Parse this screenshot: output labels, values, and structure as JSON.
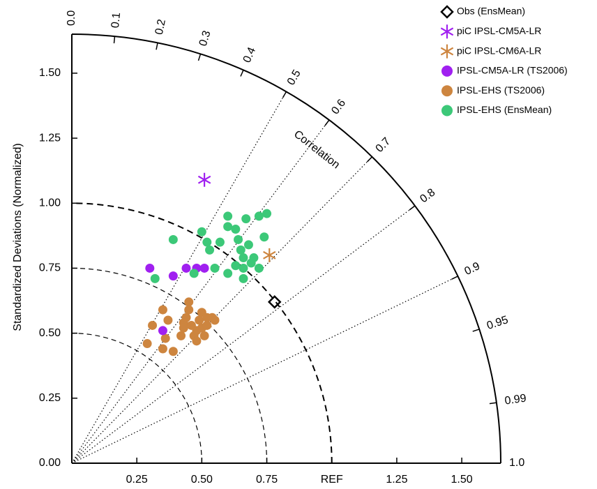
{
  "chart_data": {
    "type": "taylor",
    "y_label": "Standardized Deviations (Normalized)",
    "correlation_label": "Correlation",
    "xlim": [
      0,
      1.65
    ],
    "ylim": [
      0,
      1.65
    ],
    "xticks": [
      0.25,
      {
        "value": 0.5,
        "label": "0.50"
      },
      0.75,
      {
        "value": 1.0,
        "label": "REF"
      },
      1.25,
      {
        "value": 1.5,
        "label": "1.50"
      }
    ],
    "yticks": [
      {
        "value": 0,
        "label": "0.00"
      },
      0.25,
      {
        "value": 0.5,
        "label": "0.50"
      },
      0.75,
      {
        "value": 1.0,
        "label": "1.00"
      },
      1.25,
      {
        "value": 1.5,
        "label": "1.50"
      }
    ],
    "correlation_ticks": [
      {
        "value": 0,
        "label": "0.0"
      },
      0.1,
      0.2,
      0.3,
      0.4,
      0.5,
      0.6,
      0.7,
      0.8,
      0.9,
      0.95,
      0.99,
      {
        "value": 1,
        "label": "1.0"
      }
    ],
    "series": [
      {
        "name": "Obs (EnsMean)",
        "color": "#000000",
        "marker": "diamond",
        "x": [
          0.78
        ],
        "values": [
          0.62
        ]
      },
      {
        "name": "piC IPSL-CM5A-LR",
        "color": "#a020f0",
        "marker": "star",
        "x": [
          0.51
        ],
        "values": [
          1.09
        ]
      },
      {
        "name": "piC IPSL-CM6A-LR",
        "color": "#cd853f",
        "marker": "star",
        "x": [
          0.76
        ],
        "values": [
          0.8
        ]
      },
      {
        "name": "IPSL-CM5A-LR (TS2006)",
        "color": "#a020f0",
        "marker": "circle",
        "x": [
          0.3,
          0.39,
          0.44,
          0.48,
          0.51,
          0.35
        ],
        "values": [
          0.75,
          0.72,
          0.75,
          0.75,
          0.75,
          0.51
        ]
      },
      {
        "name": "IPSL-EHS (TS2006)",
        "color": "#cd853f",
        "marker": "circle",
        "x": [
          0.29,
          0.31,
          0.35,
          0.36,
          0.35,
          0.37,
          0.39,
          0.42,
          0.43,
          0.45,
          0.45,
          0.46,
          0.47,
          0.48,
          0.48,
          0.49,
          0.5,
          0.5,
          0.51,
          0.52,
          0.52,
          0.54,
          0.55,
          0.43,
          0.44
        ],
        "values": [
          0.46,
          0.53,
          0.59,
          0.48,
          0.44,
          0.55,
          0.43,
          0.49,
          0.54,
          0.62,
          0.59,
          0.53,
          0.49,
          0.51,
          0.47,
          0.55,
          0.58,
          0.52,
          0.49,
          0.56,
          0.53,
          0.56,
          0.55,
          0.52,
          0.56
        ]
      },
      {
        "name": "IPSL-EHS (EnsMean)",
        "color": "#3cc878",
        "marker": "circle",
        "x": [
          0.32,
          0.39,
          0.47,
          0.5,
          0.52,
          0.53,
          0.55,
          0.57,
          0.6,
          0.6,
          0.6,
          0.63,
          0.63,
          0.64,
          0.65,
          0.66,
          0.66,
          0.66,
          0.67,
          0.68,
          0.69,
          0.72,
          0.72,
          0.74,
          0.75,
          0.7
        ],
        "values": [
          0.71,
          0.86,
          0.73,
          0.89,
          0.85,
          0.82,
          0.75,
          0.85,
          0.91,
          0.95,
          0.73,
          0.76,
          0.9,
          0.86,
          0.82,
          0.75,
          0.71,
          0.79,
          0.94,
          0.84,
          0.77,
          0.95,
          0.75,
          0.87,
          0.96,
          0.79
        ]
      }
    ]
  }
}
